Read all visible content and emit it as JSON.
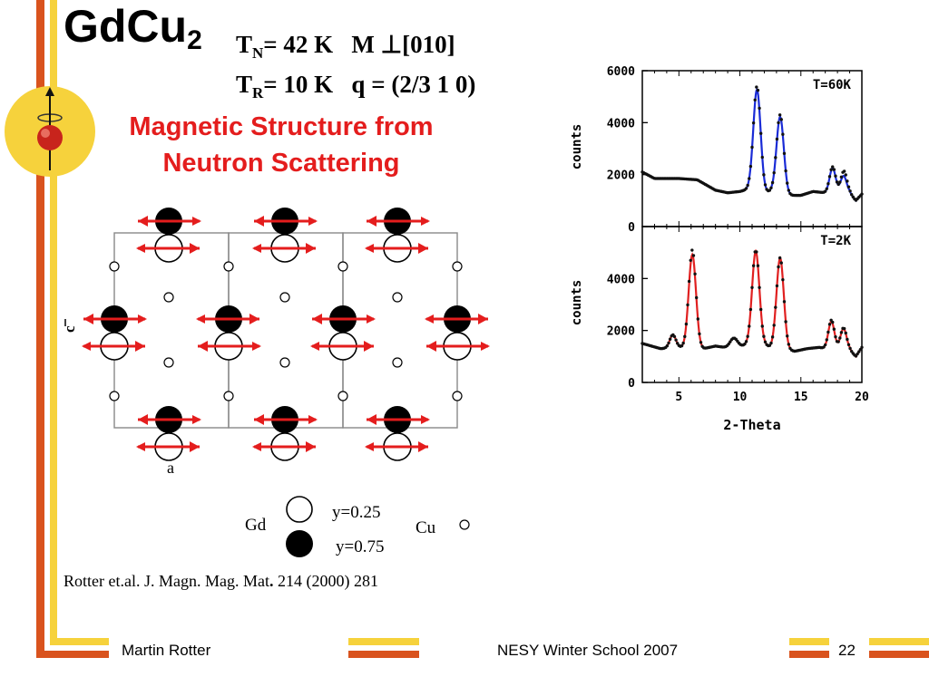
{
  "slide": {
    "title_main": "GdCu",
    "title_sub": "2",
    "param1_T": "T",
    "param1_sub": "N",
    "param1_val": "= 42 K   M ⊥[010]",
    "param2_T": "T",
    "param2_sub": "R",
    "param2_val": "= 10 K   q = (2/3 1 0)",
    "subtitle_line1": "Magnetic Structure from",
    "subtitle_line2": "Neutron Scattering",
    "citation_pre": "Rotter et.al. J. Magn. Mag. Mat",
    "citation_dot": ".",
    "citation_post": " 214 (2000) 281"
  },
  "structure": {
    "axis_c": "c",
    "axis_a": "a",
    "legend_gd": "Gd",
    "legend_y_open": "y=0.25",
    "legend_y_filled": "y=0.75",
    "legend_cu": "Cu"
  },
  "footer": {
    "author": "Martin Rotter",
    "event": "NESY Winter School 2007",
    "page": "22"
  },
  "colors": {
    "accent_orange": "#d9531e",
    "accent_yellow": "#f6d23c",
    "subtitle_red": "#e41d1d",
    "fit_blue": "#1a2bd6",
    "fit_red": "#e02020"
  },
  "chart_data": [
    {
      "type": "scatter",
      "title": "T=60K",
      "xlabel": "",
      "ylabel": "counts",
      "xlim": [
        2,
        20
      ],
      "ylim": [
        0,
        6000
      ],
      "yticks": [
        0,
        2000,
        4000,
        6000
      ],
      "fit_color": "#1a2bd6",
      "baseline": [
        [
          2,
          2100
        ],
        [
          3,
          1850
        ],
        [
          5,
          1850
        ],
        [
          6.5,
          1800
        ],
        [
          8,
          1400
        ],
        [
          9,
          1300
        ],
        [
          10,
          1350
        ],
        [
          10.8,
          1450
        ],
        [
          12,
          1300
        ],
        [
          12.6,
          1350
        ],
        [
          14,
          1200
        ],
        [
          15,
          1200
        ],
        [
          16,
          1350
        ],
        [
          17,
          1300
        ],
        [
          18,
          1300
        ],
        [
          19,
          1300
        ],
        [
          19.5,
          1000
        ],
        [
          20,
          1250
        ]
      ],
      "peaks": [
        [
          11.4,
          3900,
          0.3
        ],
        [
          13.3,
          2950,
          0.3
        ],
        [
          17.6,
          950,
          0.25
        ],
        [
          18.5,
          650,
          0.25
        ]
      ],
      "observed_peak_maxima": [
        [
          11.4,
          5400
        ],
        [
          13.3,
          4300
        ],
        [
          17.6,
          2300
        ],
        [
          18.6,
          2100
        ]
      ]
    },
    {
      "type": "scatter",
      "title": "T=2K",
      "xlabel": "2-Theta",
      "ylabel": "counts",
      "xlim": [
        2,
        20
      ],
      "ylim": [
        0,
        6000
      ],
      "xticks": [
        5,
        10,
        15,
        20
      ],
      "yticks": [
        0,
        2000,
        4000
      ],
      "fit_color": "#e02020",
      "baseline": [
        [
          2,
          1500
        ],
        [
          3.5,
          1300
        ],
        [
          5,
          1350
        ],
        [
          7,
          1300
        ],
        [
          8,
          1400
        ],
        [
          9.5,
          1300
        ],
        [
          10.5,
          1450
        ],
        [
          12,
          1450
        ],
        [
          12.5,
          1350
        ],
        [
          14.5,
          1200
        ],
        [
          15.5,
          1300
        ],
        [
          16.5,
          1350
        ],
        [
          17,
          1300
        ],
        [
          18,
          1300
        ],
        [
          19,
          1250
        ],
        [
          19.5,
          1000
        ],
        [
          20,
          1350
        ]
      ],
      "peaks": [
        [
          4.5,
          500,
          0.25
        ],
        [
          6.1,
          3600,
          0.3
        ],
        [
          9.5,
          400,
          0.3
        ],
        [
          11.3,
          3600,
          0.3
        ],
        [
          13.3,
          3500,
          0.3
        ],
        [
          17.5,
          1050,
          0.25
        ],
        [
          18.5,
          800,
          0.25
        ]
      ],
      "observed_peak_maxima": [
        [
          6.1,
          5100
        ],
        [
          11.3,
          5100
        ],
        [
          13.3,
          4800
        ],
        [
          17.5,
          2400
        ],
        [
          18.5,
          2100
        ]
      ]
    }
  ]
}
